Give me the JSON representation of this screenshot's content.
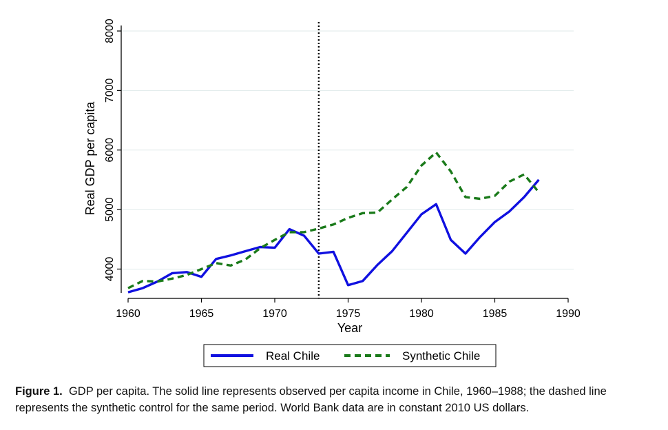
{
  "chart_data": {
    "type": "line",
    "title": "",
    "xlabel": "Year",
    "ylabel": "Real GDP per capita",
    "xlim": [
      1960,
      1990
    ],
    "ylim": [
      3600,
      8000
    ],
    "xticks": [
      1960,
      1965,
      1970,
      1975,
      1980,
      1985,
      1990
    ],
    "yticks": [
      4000,
      5000,
      6000,
      7000,
      8000
    ],
    "grid": true,
    "treatment_year": 1973,
    "legend_position": "bottom",
    "series": [
      {
        "name": "Real Chile",
        "color": "#1010e0",
        "style": "solid",
        "x": [
          1960,
          1961,
          1962,
          1963,
          1964,
          1965,
          1966,
          1967,
          1968,
          1969,
          1970,
          1971,
          1972,
          1973,
          1974,
          1975,
          1976,
          1977,
          1978,
          1979,
          1980,
          1981,
          1982,
          1983,
          1984,
          1985,
          1986,
          1987,
          1988
        ],
        "values": [
          3610,
          3680,
          3790,
          3930,
          3950,
          3870,
          4170,
          4230,
          4300,
          4370,
          4360,
          4670,
          4560,
          4260,
          4290,
          3730,
          3800,
          4070,
          4300,
          4610,
          4920,
          5090,
          4490,
          4260,
          4540,
          4790,
          4970,
          5210,
          5500
        ]
      },
      {
        "name": "Synthetic Chile",
        "color": "#1a7a1a",
        "style": "dashed",
        "x": [
          1960,
          1961,
          1962,
          1963,
          1964,
          1965,
          1966,
          1967,
          1968,
          1969,
          1970,
          1971,
          1972,
          1973,
          1974,
          1975,
          1976,
          1977,
          1978,
          1979,
          1980,
          1981,
          1982,
          1983,
          1984,
          1985,
          1986,
          1987,
          1988
        ],
        "values": [
          3680,
          3800,
          3790,
          3840,
          3900,
          4000,
          4100,
          4060,
          4160,
          4350,
          4490,
          4620,
          4620,
          4680,
          4750,
          4860,
          4940,
          4950,
          5170,
          5380,
          5740,
          5960,
          5640,
          5210,
          5180,
          5230,
          5470,
          5590,
          5290
        ]
      }
    ]
  },
  "caption": {
    "label": "Figure 1.",
    "text": "GDP per capita. The solid line represents observed per capita income in Chile, 1960–1988; the dashed line represents the synthetic control for the same period. World Bank data are in constant 2010 US dollars."
  }
}
